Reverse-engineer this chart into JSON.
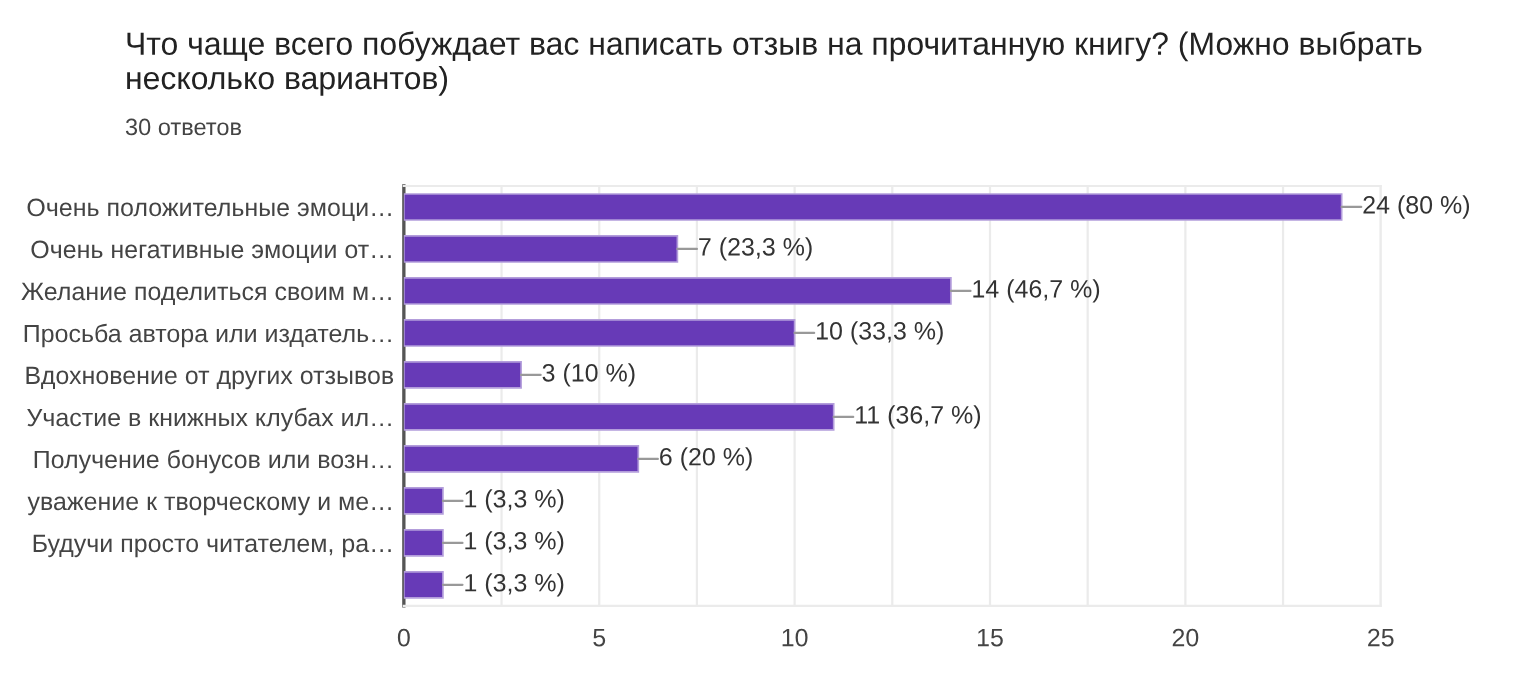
{
  "chart_data": {
    "type": "bar",
    "orientation": "horizontal",
    "title": "Что чаще всего побуждает вас написать отзыв на прочитанную книгу? (Можно выбрать несколько вариантов)",
    "subtitle": "30 ответов",
    "categories": [
      "Очень положительные эмоци…",
      "Очень негативные эмоции от…",
      "Желание поделиться своим м…",
      "Просьба автора или издатель…",
      "Вдохновение от других отзывов",
      "Участие в книжных клубах ил…",
      "Получение бонусов или возн…",
      "уважение к творческому и ме…",
      "Будучи просто читателем, ра…",
      null
    ],
    "values": [
      24,
      7,
      14,
      10,
      3,
      11,
      6,
      1,
      1,
      1
    ],
    "value_labels": [
      "24 (80 %)",
      "7 (23,3 %)",
      "14 (46,7 %)",
      "10 (33,3 %)",
      "3 (10 %)",
      "11 (36,7 %)",
      "6 (20 %)",
      "1 (3,3 %)",
      "1 (3,3 %)",
      "1 (3,3 %)"
    ],
    "color": "#673ab7",
    "xlim": [
      0,
      25
    ],
    "xticks": [
      0,
      {
        "value": 2.5,
        "label": null
      },
      5,
      {
        "value": 7.5,
        "label": null
      },
      10,
      {
        "value": 12.5,
        "label": null
      },
      15,
      {
        "value": 17.5,
        "label": null
      },
      20,
      {
        "value": 22.5,
        "label": null
      },
      25
    ],
    "grid": "x",
    "legend": false
  }
}
